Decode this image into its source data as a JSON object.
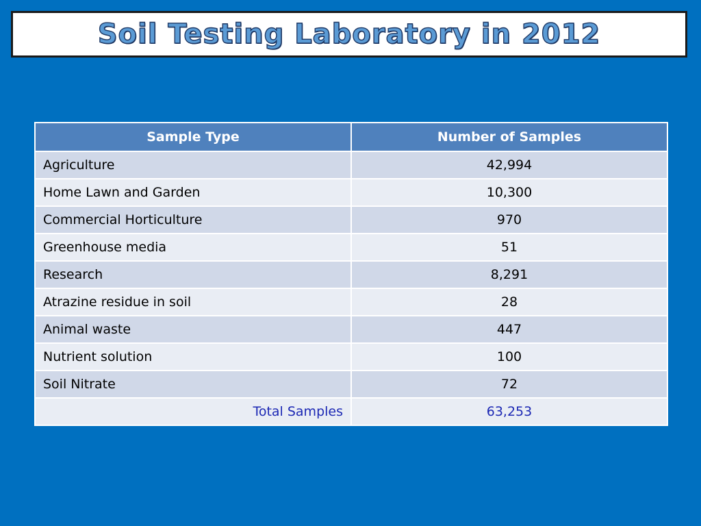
{
  "slide": {
    "title": "Soil Testing Laboratory in 2012"
  },
  "table": {
    "headers": [
      "Sample Type",
      "Number of Samples"
    ],
    "rows": [
      {
        "type": "Agriculture",
        "count": "42,994"
      },
      {
        "type": "Home Lawn and Garden",
        "count": "10,300"
      },
      {
        "type": "Commercial Horticulture",
        "count": "970"
      },
      {
        "type": "Greenhouse media",
        "count": "51"
      },
      {
        "type": "Research",
        "count": "8,291"
      },
      {
        "type": "Atrazine residue in soil",
        "count": "28"
      },
      {
        "type": "Animal waste",
        "count": "447"
      },
      {
        "type": "Nutrient solution",
        "count": "100"
      },
      {
        "type": "Soil Nitrate",
        "count": "72"
      }
    ],
    "total": {
      "label": "Total Samples",
      "count": "63,253"
    }
  },
  "colors": {
    "background": "#0070c0",
    "header_fill": "#4f81bd",
    "row_band_dark": "#d0d8e8",
    "row_band_light": "#e9edf4",
    "title_fill": "#5b9bd5",
    "title_outline": "#1f3864",
    "total_text": "#1c28b4"
  }
}
